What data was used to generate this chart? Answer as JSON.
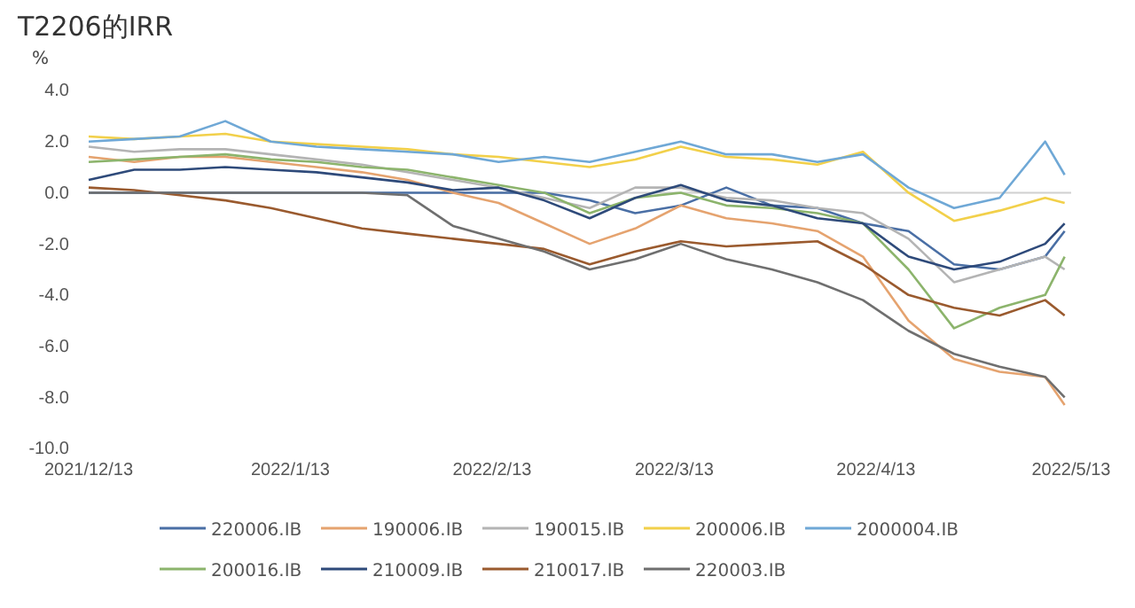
{
  "chart_data": {
    "type": "line",
    "title": "T2206的IRR",
    "ylabel": "%",
    "x": [
      "2021-12-13",
      "2021-12-20",
      "2021-12-27",
      "2022-01-03",
      "2022-01-10",
      "2022-01-17",
      "2022-01-24",
      "2022-01-31",
      "2022-02-07",
      "2022-02-14",
      "2022-02-21",
      "2022-02-28",
      "2022-03-07",
      "2022-03-14",
      "2022-03-21",
      "2022-03-28",
      "2022-04-04",
      "2022-04-11",
      "2022-04-18",
      "2022-04-25",
      "2022-05-02",
      "2022-05-09",
      "2022-05-12"
    ],
    "series": [
      {
        "name": "220006.IB",
        "color": "#4a6fa5",
        "values": [
          0,
          0,
          0,
          0,
          0,
          0,
          0,
          0,
          0,
          0,
          0,
          -0.3,
          -0.8,
          -0.5,
          0.2,
          -0.5,
          -0.6,
          -1.2,
          -1.5,
          -2.8,
          -3.0,
          -2.5,
          -1.5
        ]
      },
      {
        "name": "190006.IB",
        "color": "#e5a36f",
        "values": [
          1.4,
          1.2,
          1.4,
          1.4,
          1.2,
          1.0,
          0.8,
          0.5,
          0.0,
          -0.4,
          -1.2,
          -2.0,
          -1.4,
          -0.5,
          -1.0,
          -1.2,
          -1.5,
          -2.5,
          -5.0,
          -6.5,
          -7.0,
          -7.2,
          -8.3
        ]
      },
      {
        "name": "190015.IB",
        "color": "#b4b4b4",
        "values": [
          1.8,
          1.6,
          1.7,
          1.7,
          1.5,
          1.3,
          1.1,
          0.8,
          0.5,
          0.2,
          -0.2,
          -0.6,
          0.2,
          0.2,
          -0.2,
          -0.3,
          -0.6,
          -0.8,
          -1.8,
          -3.5,
          -3.0,
          -2.5,
          -3.0
        ]
      },
      {
        "name": "200006.IB",
        "color": "#f2d04a",
        "values": [
          2.2,
          2.1,
          2.2,
          2.3,
          2.0,
          1.9,
          1.8,
          1.7,
          1.5,
          1.4,
          1.2,
          1.0,
          1.3,
          1.8,
          1.4,
          1.3,
          1.1,
          1.6,
          0.0,
          -1.1,
          -0.7,
          -0.2,
          -0.4
        ]
      },
      {
        "name": "2000004.IB",
        "color": "#6fa8d6",
        "values": [
          2.0,
          2.1,
          2.2,
          2.8,
          2.0,
          1.8,
          1.7,
          1.6,
          1.5,
          1.2,
          1.4,
          1.2,
          1.6,
          2.0,
          1.5,
          1.5,
          1.2,
          1.5,
          0.2,
          -0.6,
          -0.2,
          2.0,
          0.7
        ]
      },
      {
        "name": "200016.IB",
        "color": "#8cb46c",
        "values": [
          1.2,
          1.3,
          1.4,
          1.5,
          1.3,
          1.2,
          1.0,
          0.9,
          0.6,
          0.3,
          0.0,
          -0.8,
          -0.2,
          0.0,
          -0.5,
          -0.6,
          -0.8,
          -1.2,
          -3.0,
          -5.3,
          -4.5,
          -4.0,
          -2.5
        ]
      },
      {
        "name": "210009.IB",
        "color": "#2e4a7a",
        "values": [
          0.5,
          0.9,
          0.9,
          1.0,
          0.9,
          0.8,
          0.6,
          0.4,
          0.1,
          0.2,
          -0.3,
          -1.0,
          -0.2,
          0.3,
          -0.3,
          -0.5,
          -1.0,
          -1.2,
          -2.5,
          -3.0,
          -2.7,
          -2.0,
          -1.2
        ]
      },
      {
        "name": "210017.IB",
        "color": "#9a5a2e",
        "values": [
          0.2,
          0.1,
          -0.1,
          -0.3,
          -0.6,
          -1.0,
          -1.4,
          -1.6,
          -1.8,
          -2.0,
          -2.2,
          -2.8,
          -2.3,
          -1.9,
          -2.1,
          -2.0,
          -1.9,
          -2.8,
          -4.0,
          -4.5,
          -4.8,
          -4.2,
          -4.8
        ]
      },
      {
        "name": "220003.IB",
        "color": "#6f6f6f",
        "values": [
          0,
          0,
          0,
          0,
          0,
          0,
          0,
          -0.1,
          -1.3,
          -1.8,
          -2.3,
          -3.0,
          -2.6,
          -2.0,
          -2.6,
          -3.0,
          -3.5,
          -4.2,
          -5.4,
          -6.3,
          -6.8,
          -7.2,
          -8.0
        ]
      }
    ],
    "xlim": [
      "2021-12-13",
      "2022-05-13"
    ],
    "xticks": [
      {
        "value": "2021-12-13",
        "label": "2021/12/13"
      },
      {
        "value": "2022-01-13",
        "label": "2022/1/13"
      },
      {
        "value": "2022-02-13",
        "label": "2022/2/13"
      },
      {
        "value": "2022-03-13",
        "label": "2022/3/13"
      },
      {
        "value": "2022-04-13",
        "label": "2022/4/13"
      },
      {
        "value": "2022-05-13",
        "label": "2022/5/13"
      }
    ],
    "ylim": [
      -10,
      4
    ],
    "yticks": [
      {
        "value": 4,
        "label": "4.0"
      },
      {
        "value": 2,
        "label": "2.0"
      },
      {
        "value": 0,
        "label": "0.0"
      },
      {
        "value": -2,
        "label": "-2.0"
      },
      {
        "value": -4,
        "label": "-4.0"
      },
      {
        "value": -6,
        "label": "-6.0"
      },
      {
        "value": -8,
        "label": "-8.0"
      },
      {
        "value": -10,
        "label": "-10.0"
      }
    ],
    "ref_lines": [
      {
        "axis": "y",
        "value": 0,
        "color": "#d0d0d0"
      }
    ],
    "legend": "bottom",
    "marker": "none",
    "line_style": "solid"
  }
}
